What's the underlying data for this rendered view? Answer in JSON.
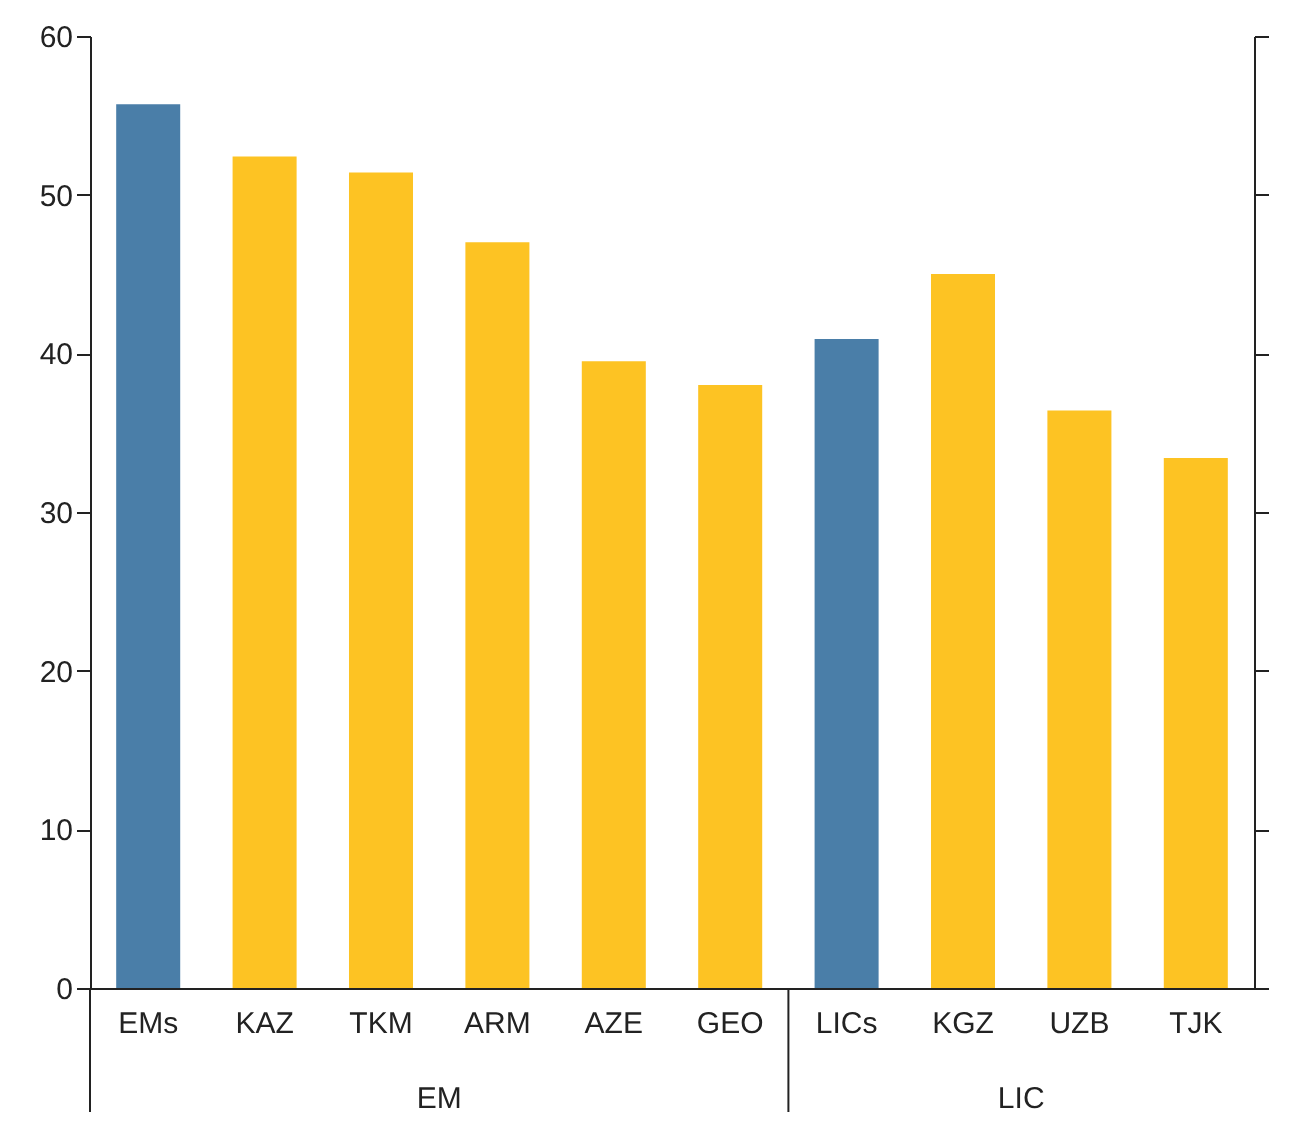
{
  "chart_data": {
    "type": "bar",
    "categories": [
      "EMs",
      "KAZ",
      "TKM",
      "ARM",
      "AZE",
      "GEO",
      "LICs",
      "KGZ",
      "UZB",
      "TJK"
    ],
    "values": [
      55.7,
      52.4,
      51.4,
      47.0,
      39.5,
      38.0,
      40.9,
      45.0,
      36.4,
      33.4
    ],
    "colors": [
      "#4a7ea8",
      "#fdc323",
      "#fdc323",
      "#fdc323",
      "#fdc323",
      "#fdc323",
      "#4a7ea8",
      "#fdc323",
      "#fdc323",
      "#fdc323"
    ],
    "ylim": [
      0,
      60
    ],
    "yticks": [
      0,
      10,
      20,
      30,
      40,
      50,
      60
    ],
    "annotations": [
      "EM",
      "LIC"
    ],
    "grid": false
  }
}
